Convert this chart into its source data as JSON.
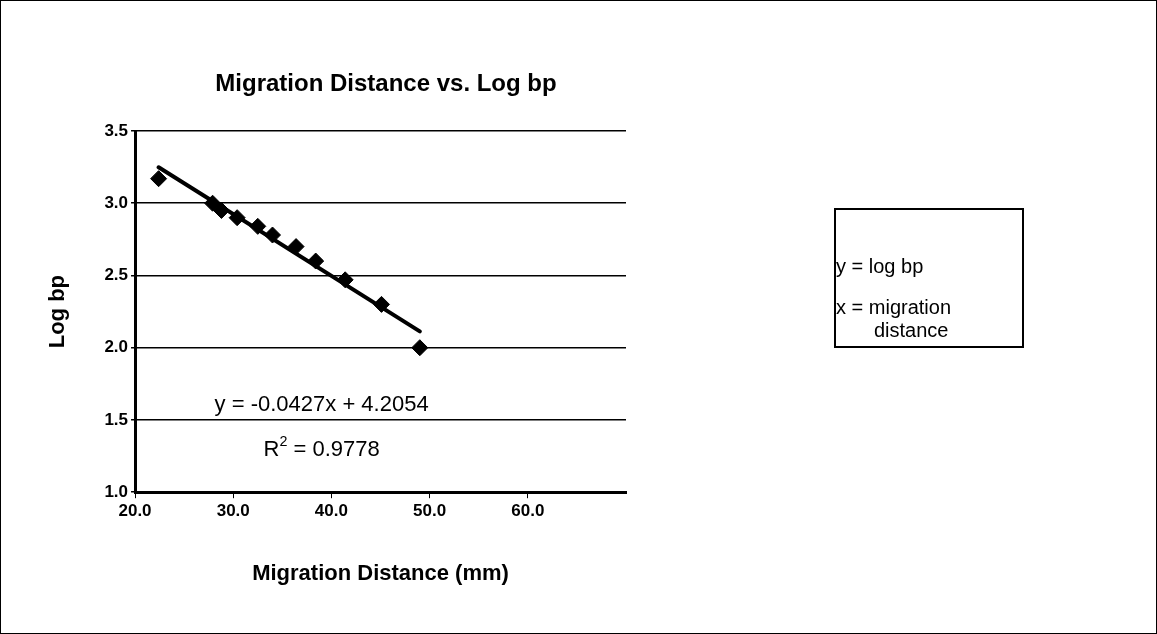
{
  "chart_data": {
    "type": "scatter",
    "title": "Migration Distance vs. Log bp",
    "xlabel": "Migration Distance (mm)",
    "ylabel": "Log bp",
    "xlim": [
      20,
      70
    ],
    "ylim": [
      1,
      3.5
    ],
    "xticks": [
      {
        "value": 20,
        "label": "20.0"
      },
      {
        "value": 30,
        "label": "30.0"
      },
      {
        "value": 40,
        "label": "40.0"
      },
      {
        "value": 50,
        "label": "50.0"
      },
      {
        "value": 60,
        "label": "60.0"
      }
    ],
    "yticks": [
      {
        "value": 1,
        "label": "1.0"
      },
      {
        "value": 1.5,
        "label": "1.5"
      },
      {
        "value": 2,
        "label": "2.0"
      },
      {
        "value": 2.5,
        "label": "2.5"
      },
      {
        "value": 3,
        "label": "3.0"
      },
      {
        "value": 3.5,
        "label": "3.5"
      }
    ],
    "grid": "y",
    "legend": false,
    "marker": "diamond",
    "series": [
      {
        "color": "#000000",
        "x": [
          22.4,
          27.9,
          28.8,
          30.4,
          32.5,
          34.0,
          36.4,
          38.4,
          41.4,
          45.1,
          49.0
        ],
        "values": [
          3.17,
          3.0,
          2.95,
          2.9,
          2.84,
          2.78,
          2.7,
          2.6,
          2.47,
          2.3,
          2.0
        ]
      },
      {
        "type": "line",
        "color": "#000000",
        "marker": "none",
        "x": [
          22.4,
          49.0
        ],
        "values": [
          3.249,
          2.113
        ]
      }
    ],
    "annotations": [
      "y = -0.0427x + 4.2054",
      "R$^{2}$ = 0.9778",
      "y = log bp",
      "x = migration distance"
    ]
  }
}
